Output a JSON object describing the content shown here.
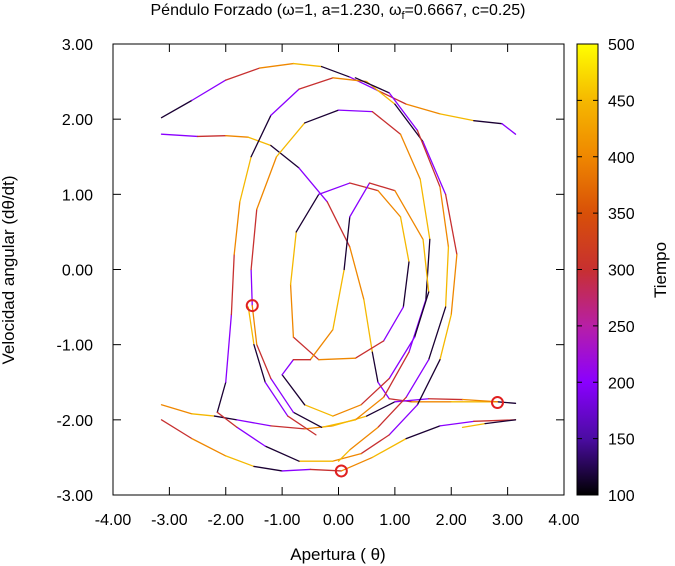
{
  "chart_data": {
    "type": "scatter",
    "title_parts": {
      "prefix": "Péndulo Forzado (",
      "omega_sym": "ω",
      "omega_val": "=1, a=1.230, ",
      "omega_f_sym": "ω",
      "omega_f_sub": "f",
      "suffix": "=0.6667, c=0.25)"
    },
    "xlabel": {
      "text": "Apertura ( ",
      "symbol": "θ",
      "close": ")"
    },
    "ylabel": "Velocidad angular (dθ/dt)",
    "colorbar_label": "Tiempo",
    "xlim": [
      -4,
      4
    ],
    "ylim": [
      -3,
      3
    ],
    "x_ticks": [
      "-4.00",
      "-3.00",
      "-2.00",
      "-1.00",
      "0.00",
      "1.00",
      "2.00",
      "3.00",
      "4.00"
    ],
    "y_ticks": [
      "-3.00",
      "-2.00",
      "-1.00",
      "0.00",
      "1.00",
      "2.00",
      "3.00"
    ],
    "x_tick_values": [
      -4,
      -3,
      -2,
      -1,
      0,
      1,
      2,
      3,
      4
    ],
    "y_tick_values": [
      -3,
      -2,
      -1,
      0,
      1,
      2,
      3
    ],
    "colorbar": {
      "range": [
        100,
        500
      ],
      "ticks": [
        "100",
        "150",
        "200",
        "250",
        "300",
        "350",
        "400",
        "450",
        "500"
      ],
      "tick_values": [
        100,
        150,
        200,
        250,
        300,
        350,
        400,
        450,
        500
      ],
      "colors": [
        "#000000",
        "#4b0ca2",
        "#8a00ff",
        "#b71fa6",
        "#c73030",
        "#d85008",
        "#ef8700",
        "#f5b800",
        "#ffff00"
      ]
    },
    "grid": false,
    "legend": "none",
    "poincare_points": [
      {
        "x": -1.53,
        "y": -0.48
      },
      {
        "x": 0.05,
        "y": -2.68
      },
      {
        "x": 2.82,
        "y": -1.77
      }
    ],
    "trajectory_description": "phase-space orbit colored by time"
  }
}
